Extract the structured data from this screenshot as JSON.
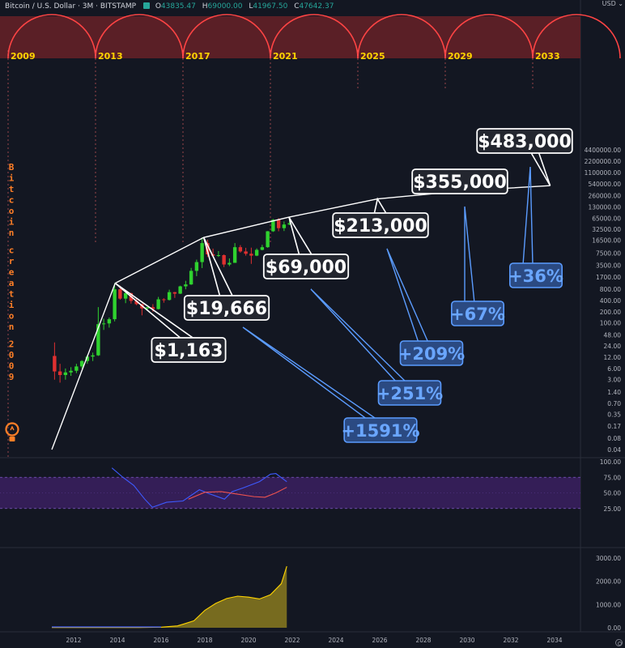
{
  "header": {
    "symbol": "Bitcoin / U.S. Dollar",
    "interval": "3M",
    "exchange": "BITSTAMP",
    "open_key": "O",
    "open": "43835.47",
    "high_key": "H",
    "high": "69000.00",
    "low_key": "L",
    "low": "41967.50",
    "close_key": "C",
    "close": "47642.37"
  },
  "currency": "USD",
  "colors": {
    "background": "#131722",
    "up": "#26a69a",
    "down": "#ef5350",
    "candle_up": "#2fd22f",
    "candle_down": "#e03030",
    "arc": "#ff4444",
    "arc_band": "#5a1f26",
    "halving_line": "#ff6b6b",
    "label_box": "#23262f",
    "pct_box": "#2b4a82",
    "pct_text": "#5b9cff",
    "year_label": "#ffd400",
    "bitcoin_text": "#ff7f27",
    "rsi_band": "#3b2060",
    "rsi_line": "#3d5afe",
    "rsi_signal": "#ef5350",
    "vol_fill": "#8a7a1e",
    "vol_line": "#ffd400"
  },
  "chart_data": {
    "type": "line",
    "y_scale": "log",
    "x_ticks": [
      "2012",
      "2014",
      "2016",
      "2018",
      "2020",
      "2022",
      "2024",
      "2026",
      "2028",
      "2030",
      "2032",
      "2034"
    ],
    "y_ticks": [
      "4400000.00",
      "2200000.00",
      "1100000.00",
      "540000.00",
      "260000.00",
      "130000.00",
      "65000.00",
      "32500.00",
      "16500.00",
      "7500.00",
      "3500.00",
      "1700.00",
      "800.00",
      "400.00",
      "200.00",
      "100.00",
      "48.00",
      "24.00",
      "12.00",
      "6.00",
      "3.00",
      "1.40",
      "0.70",
      "0.35",
      "0.17",
      "0.08",
      "0.04"
    ],
    "cycle_years": [
      "2009",
      "2013",
      "2017",
      "2021",
      "2025",
      "2029",
      "2033"
    ],
    "side_text": "Bitcoin creation 2009",
    "price_labels": [
      {
        "text": "$1,163",
        "year": 2013.9,
        "price": 1163
      },
      {
        "text": "$19,666",
        "year": 2017.95,
        "price": 19666
      },
      {
        "text": "$69,000",
        "year": 2021.85,
        "price": 69000
      },
      {
        "text": "$213,000",
        "year": 2025.9,
        "price": 213000
      },
      {
        "text": "$355,000",
        "year": 2029.9,
        "price": 355000
      },
      {
        "text": "$483,000",
        "year": 2033.8,
        "price": 483000
      }
    ],
    "pct_labels": [
      "+1591%",
      "+251%",
      "+209%",
      "+67%",
      "+36%"
    ],
    "peak_curve": [
      [
        2011.0,
        0.04
      ],
      [
        2013.9,
        1163
      ],
      [
        2017.95,
        19666
      ],
      [
        2021.85,
        69000
      ],
      [
        2025.9,
        213000
      ],
      [
        2029.9,
        355000
      ],
      [
        2033.8,
        483000
      ]
    ],
    "candles": [
      {
        "t": 2011.0,
        "o": 13.0,
        "h": 30.0,
        "l": 3.0,
        "c": 5.0
      },
      {
        "t": 2011.25,
        "o": 5.0,
        "h": 8.0,
        "l": 2.5,
        "c": 4.0
      },
      {
        "t": 2011.5,
        "o": 4.0,
        "h": 6.0,
        "l": 3.0,
        "c": 4.7
      },
      {
        "t": 2011.75,
        "o": 4.7,
        "h": 6.5,
        "l": 3.8,
        "c": 5.2
      },
      {
        "t": 2012.0,
        "o": 5.2,
        "h": 8.0,
        "l": 4.5,
        "c": 6.8
      },
      {
        "t": 2012.25,
        "o": 6.8,
        "h": 10.0,
        "l": 6.0,
        "c": 9.5
      },
      {
        "t": 2012.5,
        "o": 9.5,
        "h": 14.0,
        "l": 8.0,
        "c": 12.5
      },
      {
        "t": 2012.75,
        "o": 12.5,
        "h": 16.0,
        "l": 9.5,
        "c": 13.5
      },
      {
        "t": 2013.0,
        "o": 13.5,
        "h": 266.0,
        "l": 13.0,
        "c": 93.0
      },
      {
        "t": 2013.25,
        "o": 93.0,
        "h": 130.0,
        "l": 65.0,
        "c": 97.0
      },
      {
        "t": 2013.5,
        "o": 97.0,
        "h": 140.0,
        "l": 75.0,
        "c": 126.0
      },
      {
        "t": 2013.75,
        "o": 126.0,
        "h": 1163.0,
        "l": 110.0,
        "c": 800.0
      },
      {
        "t": 2014.0,
        "o": 800.0,
        "h": 1000.0,
        "l": 420.0,
        "c": 450.0
      },
      {
        "t": 2014.25,
        "o": 450.0,
        "h": 680.0,
        "l": 340.0,
        "c": 630.0
      },
      {
        "t": 2014.5,
        "o": 630.0,
        "h": 650.0,
        "l": 330.0,
        "c": 390.0
      },
      {
        "t": 2014.75,
        "o": 390.0,
        "h": 440.0,
        "l": 300.0,
        "c": 320.0
      },
      {
        "t": 2015.0,
        "o": 320.0,
        "h": 330.0,
        "l": 160.0,
        "c": 245.0
      },
      {
        "t": 2015.25,
        "o": 245.0,
        "h": 260.0,
        "l": 220.0,
        "c": 265.0
      },
      {
        "t": 2015.5,
        "o": 265.0,
        "h": 320.0,
        "l": 200.0,
        "c": 236.0
      },
      {
        "t": 2015.75,
        "o": 236.0,
        "h": 500.0,
        "l": 230.0,
        "c": 430.0
      },
      {
        "t": 2016.0,
        "o": 430.0,
        "h": 460.0,
        "l": 350.0,
        "c": 415.0
      },
      {
        "t": 2016.25,
        "o": 415.0,
        "h": 780.0,
        "l": 400.0,
        "c": 670.0
      },
      {
        "t": 2016.5,
        "o": 670.0,
        "h": 680.0,
        "l": 470.0,
        "c": 610.0
      },
      {
        "t": 2016.75,
        "o": 610.0,
        "h": 1000.0,
        "l": 600.0,
        "c": 960.0
      },
      {
        "t": 2017.0,
        "o": 960.0,
        "h": 1350.0,
        "l": 800.0,
        "c": 1080.0
      },
      {
        "t": 2017.25,
        "o": 1080.0,
        "h": 3000.0,
        "l": 1050.0,
        "c": 2500.0
      },
      {
        "t": 2017.5,
        "o": 2500.0,
        "h": 5000.0,
        "l": 1800.0,
        "c": 4300.0
      },
      {
        "t": 2017.75,
        "o": 4300.0,
        "h": 19666.0,
        "l": 2970.0,
        "c": 13900.0
      },
      {
        "t": 2018.0,
        "o": 13900.0,
        "h": 17200.0,
        "l": 5900.0,
        "c": 6930.0
      },
      {
        "t": 2018.25,
        "o": 6930.0,
        "h": 9900.0,
        "l": 5800.0,
        "c": 6400.0
      },
      {
        "t": 2018.5,
        "o": 6400.0,
        "h": 8500.0,
        "l": 5900.0,
        "c": 6600.0
      },
      {
        "t": 2018.75,
        "o": 6600.0,
        "h": 6900.0,
        "l": 3150.0,
        "c": 3700.0
      },
      {
        "t": 2019.0,
        "o": 3700.0,
        "h": 5400.0,
        "l": 3350.0,
        "c": 4100.0
      },
      {
        "t": 2019.25,
        "o": 4100.0,
        "h": 13900.0,
        "l": 4100.0,
        "c": 10800.0
      },
      {
        "t": 2019.5,
        "o": 10800.0,
        "h": 12300.0,
        "l": 7700.0,
        "c": 8300.0
      },
      {
        "t": 2019.75,
        "o": 8300.0,
        "h": 10400.0,
        "l": 6400.0,
        "c": 7200.0
      },
      {
        "t": 2020.0,
        "o": 7200.0,
        "h": 10500.0,
        "l": 3850.0,
        "c": 6400.0
      },
      {
        "t": 2020.25,
        "o": 6400.0,
        "h": 10000.0,
        "l": 6200.0,
        "c": 9150.0
      },
      {
        "t": 2020.5,
        "o": 9150.0,
        "h": 12500.0,
        "l": 8900.0,
        "c": 10800.0
      },
      {
        "t": 2020.75,
        "o": 10800.0,
        "h": 29300.0,
        "l": 10400.0,
        "c": 28900.0
      },
      {
        "t": 2021.0,
        "o": 28900.0,
        "h": 61800.0,
        "l": 27700.0,
        "c": 58800.0
      },
      {
        "t": 2021.25,
        "o": 58800.0,
        "h": 64900.0,
        "l": 28800.0,
        "c": 35000.0
      },
      {
        "t": 2021.5,
        "o": 35000.0,
        "h": 52900.0,
        "l": 29300.0,
        "c": 43800.0
      },
      {
        "t": 2021.75,
        "o": 43835.47,
        "h": 69000.0,
        "l": 41967.5,
        "c": 47642.37
      }
    ],
    "rsi": {
      "y_ticks": [
        "100.00",
        "75.00",
        "50.00",
        "25.00"
      ],
      "band": [
        30,
        70
      ],
      "line": [
        [
          2013.75,
          90
        ],
        [
          2014.25,
          75
        ],
        [
          2014.75,
          62
        ],
        [
          2015.25,
          40
        ],
        [
          2015.6,
          27
        ],
        [
          2016.25,
          35
        ],
        [
          2017.0,
          37
        ],
        [
          2017.75,
          55
        ],
        [
          2018.25,
          48
        ],
        [
          2018.9,
          40
        ],
        [
          2019.25,
          52
        ],
        [
          2019.75,
          58
        ],
        [
          2020.5,
          68
        ],
        [
          2021.0,
          80
        ],
        [
          2021.25,
          81
        ],
        [
          2021.75,
          68
        ]
      ],
      "signal": [
        [
          2017.25,
          40
        ],
        [
          2018.0,
          51
        ],
        [
          2018.75,
          52
        ],
        [
          2019.5,
          48
        ],
        [
          2020.25,
          44
        ],
        [
          2020.75,
          43
        ],
        [
          2021.25,
          50
        ],
        [
          2021.75,
          59
        ]
      ]
    },
    "volume": {
      "y_ticks": [
        "3000.00",
        "2000.00",
        "1000.00",
        "0.00"
      ],
      "series": [
        [
          2011.0,
          10
        ],
        [
          2015.0,
          12
        ],
        [
          2016.0,
          25
        ],
        [
          2016.75,
          80
        ],
        [
          2017.0,
          150
        ],
        [
          2017.5,
          300
        ],
        [
          2018.0,
          750
        ],
        [
          2018.5,
          1050
        ],
        [
          2019.0,
          1260
        ],
        [
          2019.5,
          1360
        ],
        [
          2020.0,
          1320
        ],
        [
          2020.5,
          1240
        ],
        [
          2021.0,
          1420
        ],
        [
          2021.5,
          1900
        ],
        [
          2021.75,
          2650
        ]
      ]
    }
  }
}
